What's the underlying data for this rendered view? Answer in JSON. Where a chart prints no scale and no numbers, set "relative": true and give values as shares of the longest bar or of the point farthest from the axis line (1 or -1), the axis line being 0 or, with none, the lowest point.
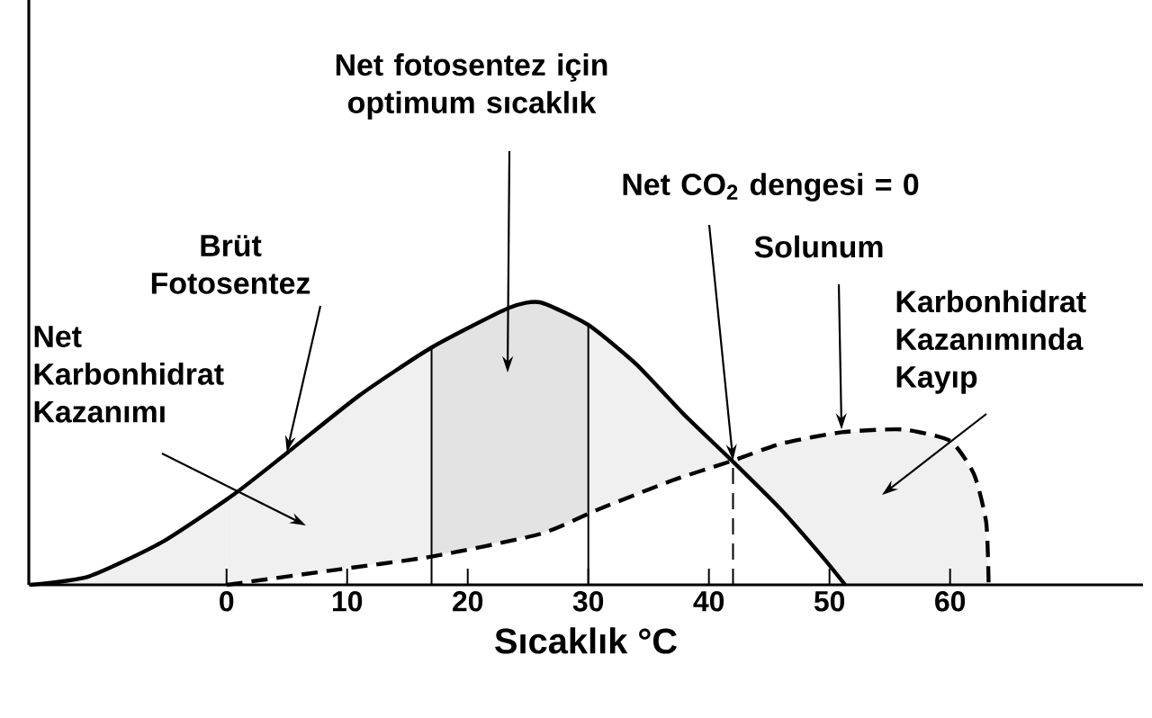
{
  "chart_data": {
    "type": "line",
    "relative": true,
    "xlabel": "Sıcaklık °C",
    "xlim": [
      -16.4,
      76
    ],
    "xticks": [
      0,
      10,
      20,
      30,
      40,
      50,
      60
    ],
    "series": [
      {
        "color": "#000000",
        "line_style": "solid",
        "x": [
          -16.3,
          -11.4,
          -5.4,
          0.6,
          5.1,
          11,
          17,
          23.4,
          26,
          30,
          34,
          38,
          41.9,
          45.9,
          49.4,
          51.3
        ],
        "values": [
          0,
          0.03,
          0.15,
          0.32,
          0.47,
          0.67,
          0.84,
          0.98,
          1.0,
          0.92,
          0.78,
          0.6,
          0.44,
          0.27,
          0.1,
          0
        ]
      },
      {
        "color": "#000000",
        "line_style": "dashed",
        "x": [
          0,
          8.5,
          17,
          26,
          31,
          37,
          42,
          46,
          51,
          56,
          60,
          62,
          63,
          63.2
        ],
        "values": [
          0,
          0.05,
          0.1,
          0.18,
          0.27,
          0.37,
          0.44,
          0.5,
          0.54,
          0.55,
          0.51,
          0.39,
          0.22,
          0
        ]
      }
    ],
    "ref_lines": [
      {
        "axis": "x",
        "value": 17,
        "line_style": "solid"
      },
      {
        "axis": "x",
        "value": 30,
        "line_style": "solid"
      },
      {
        "axis": "x",
        "value": 42,
        "line_style": "dashed"
      }
    ],
    "annotations": [
      "Net fotosentez için optimum sıcaklık",
      {
        "text": "Net CO$_{2}$ dengesi = 0",
        "x": 42,
        "y": 0.44
      },
      {
        "text": "Brüt Fotosentez",
        "x": 5,
        "y": 0.47
      },
      {
        "text": "Solunum",
        "x": 51,
        "y": 0.55
      },
      "Net Karbonhidrat Kazanımı",
      "Karbonhidrat Kazanımında Kayıp"
    ]
  }
}
